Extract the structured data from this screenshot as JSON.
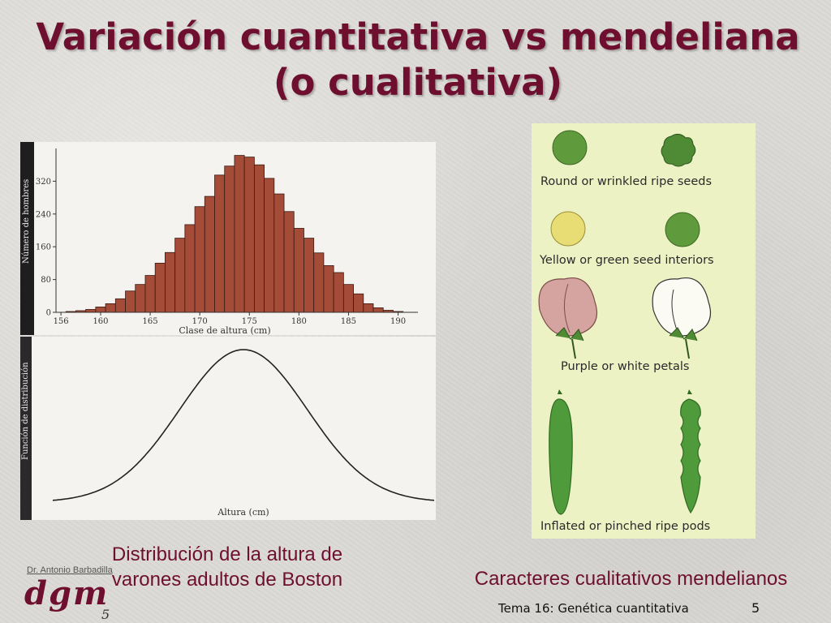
{
  "slide": {
    "title": "Variación cuantitativa vs mendeliana (o cualitativa)",
    "caption_left": "Distribución de la altura de varones adultos de Boston",
    "caption_right": "Caracteres cualitativos mendelianos",
    "footer": {
      "author": "Dr. Antonio Barbadilla",
      "logo": "dgm",
      "slide_number_left": "5",
      "topic": "Tema 16: Genética cuantitativa",
      "page_number": "5"
    }
  },
  "chart_data": [
    {
      "type": "bar",
      "ylabel": "Número de hombres",
      "xlabel": "Clase de altura (cm)",
      "x_ticks": [
        156,
        160,
        165,
        170,
        175,
        180,
        185,
        190
      ],
      "y_ticks": [
        0,
        80,
        160,
        240,
        320
      ],
      "ylim": [
        0,
        400
      ],
      "xlim": [
        155.5,
        192
      ],
      "bin_starts": [
        157,
        158,
        159,
        160,
        161,
        162,
        163,
        164,
        165,
        166,
        167,
        168,
        169,
        170,
        171,
        172,
        173,
        174,
        175,
        176,
        177,
        178,
        179,
        180,
        181,
        182,
        183,
        184,
        185,
        186,
        187,
        188,
        189,
        190
      ],
      "values": [
        2,
        4,
        7,
        13,
        21,
        33,
        52,
        68,
        90,
        120,
        146,
        181,
        214,
        258,
        283,
        335,
        357,
        383,
        379,
        360,
        327,
        289,
        246,
        205,
        181,
        145,
        114,
        97,
        68,
        45,
        21,
        11,
        5,
        2
      ],
      "bar_color": "#a44c38"
    },
    {
      "type": "line",
      "ylabel": "Función de distribución",
      "xlabel": "Altura (cm)",
      "curve": "normal",
      "mean": 174.5,
      "sd": 6.2,
      "xlim": [
        156,
        193
      ]
    }
  ],
  "peas": {
    "labels": [
      "Round or wrinkled ripe seeds",
      "Yellow or green seed interiors",
      "Purple or white petals",
      "Inflated or pinched ripe pods"
    ],
    "colors": {
      "green_seed": "#5f9a3c",
      "yellow_seed": "#e8dc74",
      "purple_petal": "#d6a4a0",
      "white_petal": "#fbfbf3",
      "pod": "#4f9a3a",
      "background": "#ecf2c4"
    }
  }
}
